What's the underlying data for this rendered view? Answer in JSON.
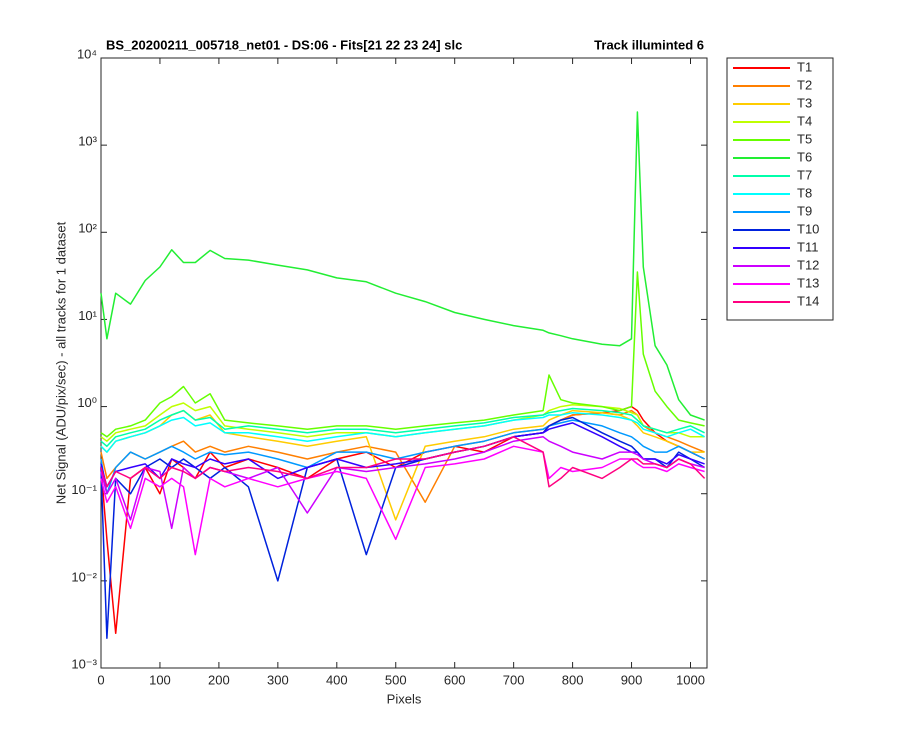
{
  "chart_data": {
    "type": "line",
    "title": "BS_20200211_005718_net01 - DS:06 - Fits[21  22  23  24]   slc",
    "title_right": "Track illuminted 6",
    "xlabel": "Pixels",
    "ylabel": "Net Signal (ADU/pix/sec) - all tracks for 1 dataset",
    "yscale": "log",
    "legend": "northeastoutside",
    "xlim": [
      0,
      1028
    ],
    "ylim": [
      0.001,
      10000
    ],
    "xticks": [
      0,
      100,
      200,
      300,
      400,
      500,
      600,
      700,
      800,
      900,
      1000
    ],
    "yticks": [
      {
        "value": 0.001,
        "label": "10⁻³"
      },
      {
        "value": 0.01,
        "label": "10⁻²"
      },
      {
        "value": 0.1,
        "label": "10⁻¹"
      },
      {
        "value": 1,
        "label": "10⁰"
      },
      {
        "value": 10,
        "label": "10¹"
      },
      {
        "value": 100,
        "label": "10²"
      },
      {
        "value": 1000,
        "label": "10³"
      },
      {
        "value": 10000,
        "label": "10⁴"
      }
    ],
    "x": [
      0,
      10,
      25,
      50,
      75,
      100,
      120,
      140,
      160,
      185,
      210,
      250,
      300,
      350,
      400,
      450,
      500,
      550,
      600,
      650,
      700,
      750,
      760,
      780,
      800,
      850,
      880,
      900,
      910,
      920,
      940,
      960,
      980,
      1000,
      1024
    ],
    "series": [
      {
        "name": "T1",
        "color": "#ff0000",
        "values": [
          0.2,
          0.03,
          0.0025,
          0.15,
          0.2,
          0.1,
          0.25,
          0.2,
          0.15,
          0.3,
          0.2,
          0.25,
          0.2,
          0.15,
          0.25,
          0.3,
          0.2,
          0.3,
          0.35,
          0.3,
          0.45,
          0.5,
          0.6,
          0.7,
          0.8,
          0.85,
          0.9,
          1.0,
          0.9,
          0.7,
          0.5,
          0.4,
          0.35,
          0.3,
          0.25
        ]
      },
      {
        "name": "T2",
        "color": "#ff7f00",
        "values": [
          0.3,
          0.15,
          0.2,
          0.3,
          0.25,
          0.3,
          0.35,
          0.4,
          0.3,
          0.35,
          0.3,
          0.35,
          0.3,
          0.25,
          0.3,
          0.35,
          0.3,
          0.08,
          0.35,
          0.4,
          0.5,
          0.55,
          0.6,
          0.7,
          0.8,
          0.85,
          0.8,
          0.9,
          0.8,
          0.6,
          0.5,
          0.45,
          0.4,
          0.35,
          0.3
        ]
      },
      {
        "name": "T3",
        "color": "#ffcc00",
        "values": [
          0.35,
          0.3,
          0.4,
          0.45,
          0.5,
          0.6,
          0.8,
          0.9,
          0.7,
          0.8,
          0.5,
          0.45,
          0.4,
          0.35,
          0.4,
          0.45,
          0.05,
          0.35,
          0.4,
          0.45,
          0.55,
          0.6,
          0.7,
          0.8,
          0.9,
          0.85,
          0.8,
          0.7,
          0.6,
          0.5,
          0.45,
          0.4,
          0.35,
          0.3,
          0.3
        ]
      },
      {
        "name": "T4",
        "color": "#bfff00",
        "values": [
          0.45,
          0.4,
          0.5,
          0.55,
          0.6,
          0.8,
          1.0,
          1.1,
          0.9,
          1.0,
          0.6,
          0.55,
          0.5,
          0.45,
          0.5,
          0.5,
          0.45,
          0.5,
          0.55,
          0.6,
          0.7,
          0.8,
          0.9,
          1.0,
          1.05,
          1.0,
          0.95,
          0.85,
          0.8,
          0.6,
          0.55,
          0.5,
          0.5,
          0.45,
          0.45
        ]
      },
      {
        "name": "T5",
        "color": "#66ff00",
        "values": [
          0.5,
          0.45,
          0.55,
          0.6,
          0.7,
          1.1,
          1.3,
          1.7,
          1.1,
          1.4,
          0.7,
          0.65,
          0.6,
          0.55,
          0.6,
          0.6,
          0.55,
          0.6,
          0.65,
          0.7,
          0.8,
          0.9,
          2.3,
          1.2,
          1.1,
          1.0,
          0.9,
          1.0,
          35,
          4,
          1.5,
          1.0,
          0.7,
          0.65,
          0.6
        ]
      },
      {
        "name": "T6",
        "color": "#22ee33",
        "values": [
          20,
          6,
          20,
          15,
          28,
          40,
          63,
          45,
          45,
          62,
          50,
          48,
          42,
          37,
          30,
          27,
          20,
          16,
          12,
          10,
          8.5,
          7.5,
          7,
          6.5,
          6,
          5.2,
          5,
          6,
          2400,
          40,
          5,
          3,
          1.2,
          0.8,
          0.7
        ]
      },
      {
        "name": "T7",
        "color": "#00ffaa",
        "values": [
          0.4,
          0.35,
          0.45,
          0.5,
          0.55,
          0.7,
          0.8,
          0.9,
          0.7,
          0.75,
          0.55,
          0.6,
          0.55,
          0.5,
          0.55,
          0.55,
          0.5,
          0.55,
          0.6,
          0.65,
          0.75,
          0.8,
          0.85,
          0.9,
          0.95,
          0.9,
          0.85,
          0.8,
          0.7,
          0.6,
          0.55,
          0.5,
          0.55,
          0.6,
          0.5
        ]
      },
      {
        "name": "T8",
        "color": "#00ffff",
        "values": [
          0.35,
          0.3,
          0.4,
          0.45,
          0.5,
          0.6,
          0.7,
          0.75,
          0.6,
          0.65,
          0.5,
          0.5,
          0.45,
          0.4,
          0.45,
          0.5,
          0.45,
          0.5,
          0.55,
          0.6,
          0.7,
          0.75,
          0.8,
          0.8,
          0.85,
          0.8,
          0.75,
          0.7,
          0.65,
          0.55,
          0.5,
          0.45,
          0.5,
          0.55,
          0.45
        ]
      },
      {
        "name": "T9",
        "color": "#0099ff",
        "values": [
          0.25,
          0.1,
          0.2,
          0.3,
          0.25,
          0.3,
          0.35,
          0.3,
          0.25,
          0.3,
          0.28,
          0.3,
          0.25,
          0.2,
          0.3,
          0.3,
          0.25,
          0.3,
          0.35,
          0.4,
          0.5,
          0.55,
          0.6,
          0.65,
          0.7,
          0.6,
          0.5,
          0.45,
          0.4,
          0.35,
          0.3,
          0.3,
          0.35,
          0.3,
          0.25
        ]
      },
      {
        "name": "T10",
        "color": "#0022dd",
        "values": [
          0.2,
          0.0022,
          0.15,
          0.1,
          0.2,
          0.25,
          0.2,
          0.25,
          0.2,
          0.15,
          0.2,
          0.12,
          0.01,
          0.2,
          0.25,
          0.02,
          0.2,
          0.25,
          0.3,
          0.35,
          0.45,
          0.5,
          0.6,
          0.7,
          0.75,
          0.5,
          0.4,
          0.35,
          0.3,
          0.25,
          0.25,
          0.2,
          0.3,
          0.25,
          0.2
        ]
      },
      {
        "name": "T11",
        "color": "#3300ff",
        "values": [
          0.22,
          0.12,
          0.18,
          0.2,
          0.22,
          0.15,
          0.25,
          0.22,
          0.2,
          0.25,
          0.22,
          0.25,
          0.15,
          0.2,
          0.25,
          0.2,
          0.22,
          0.25,
          0.3,
          0.35,
          0.45,
          0.5,
          0.55,
          0.6,
          0.65,
          0.45,
          0.35,
          0.3,
          0.3,
          0.25,
          0.25,
          0.22,
          0.28,
          0.25,
          0.22
        ]
      },
      {
        "name": "T12",
        "color": "#cc00ff",
        "values": [
          0.18,
          0.1,
          0.15,
          0.05,
          0.2,
          0.18,
          0.04,
          0.2,
          0.15,
          0.2,
          0.18,
          0.15,
          0.2,
          0.06,
          0.2,
          0.18,
          0.2,
          0.22,
          0.25,
          0.3,
          0.4,
          0.45,
          0.4,
          0.35,
          0.3,
          0.25,
          0.3,
          0.3,
          0.28,
          0.25,
          0.22,
          0.2,
          0.25,
          0.22,
          0.2
        ]
      },
      {
        "name": "T13",
        "color": "#ff00ff",
        "values": [
          0.15,
          0.08,
          0.12,
          0.04,
          0.15,
          0.12,
          0.15,
          0.12,
          0.02,
          0.15,
          0.12,
          0.15,
          0.12,
          0.15,
          0.18,
          0.15,
          0.03,
          0.2,
          0.22,
          0.25,
          0.35,
          0.3,
          0.15,
          0.2,
          0.18,
          0.2,
          0.25,
          0.25,
          0.22,
          0.2,
          0.2,
          0.18,
          0.22,
          0.2,
          0.18
        ]
      },
      {
        "name": "T14",
        "color": "#ff0080",
        "values": [
          0.2,
          0.12,
          0.18,
          0.15,
          0.2,
          0.15,
          0.2,
          0.18,
          0.15,
          0.2,
          0.18,
          0.2,
          0.18,
          0.15,
          0.2,
          0.2,
          0.25,
          0.25,
          0.3,
          0.35,
          0.45,
          0.3,
          0.12,
          0.15,
          0.2,
          0.15,
          0.2,
          0.25,
          0.25,
          0.22,
          0.22,
          0.2,
          0.25,
          0.22,
          0.15
        ]
      }
    ]
  }
}
